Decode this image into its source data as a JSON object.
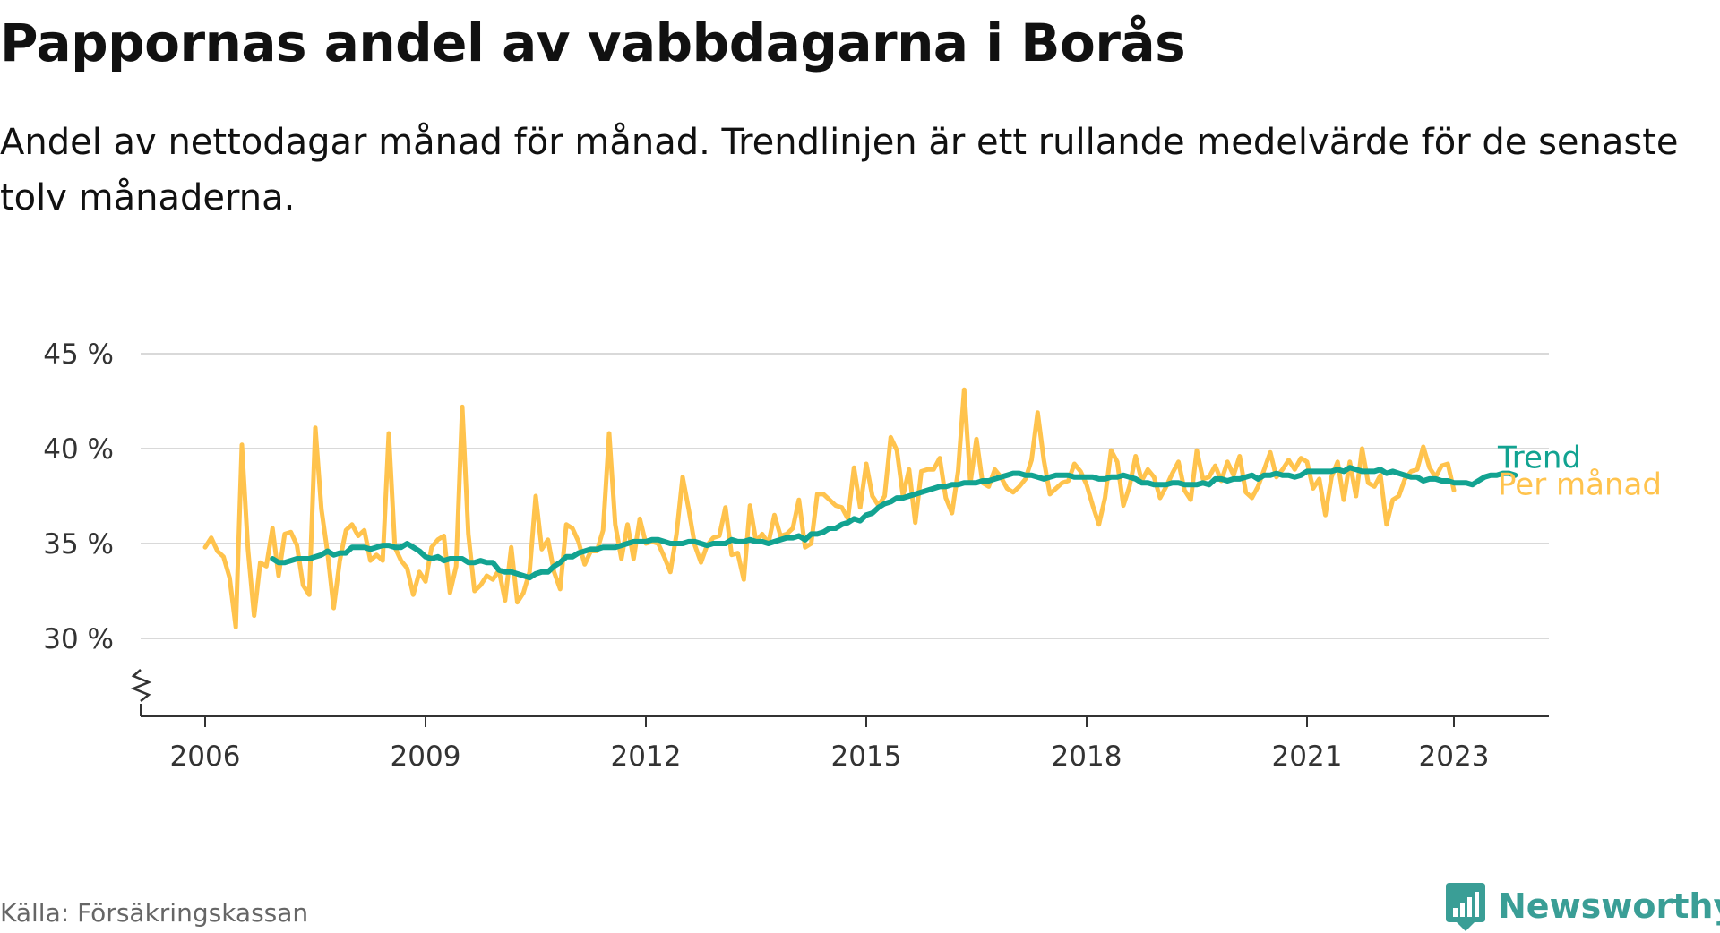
{
  "title": "Pappornas andel av vabbdagarna i Borås",
  "subtitle": "Andel av nettodagar månad för månad. Trendlinjen är ett rullande medelvärde för de senaste tolv månaderna.",
  "source": "Källa: Försäkringskassan",
  "logo": {
    "text": "Newsworthy",
    "icon": "newsworthy-logo-icon",
    "color": "#3a9e96"
  },
  "colors": {
    "trend": "#12a391",
    "monthly": "#ffc34d",
    "grid": "#d9d9d9",
    "axis": "#333333"
  },
  "chart_data": {
    "type": "line",
    "title": "Pappornas andel av vabbdagarna i Borås",
    "xlabel": "",
    "ylabel": "",
    "ylim": [
      26,
      45
    ],
    "y_ticks": [
      30,
      35,
      40,
      45
    ],
    "y_tick_labels": [
      "30 %",
      "35 %",
      "40 %",
      "45 %"
    ],
    "y_axis_break": true,
    "x_ticks": [
      2006,
      2009,
      2012,
      2015,
      2018,
      2021,
      2023
    ],
    "x_tick_labels": [
      "2006",
      "2009",
      "2012",
      "2015",
      "2018",
      "2021",
      "2023"
    ],
    "grid": true,
    "legend": "direct-labels-right",
    "series": [
      {
        "name": "Trend",
        "color": "#12a391",
        "start": "2006-12",
        "values": [
          34.2,
          34.0,
          34.0,
          34.1,
          34.2,
          34.2,
          34.2,
          34.3,
          34.4,
          34.6,
          34.4,
          34.5,
          34.5,
          34.8,
          34.8,
          34.8,
          34.7,
          34.8,
          34.9,
          34.9,
          34.8,
          34.8,
          35.0,
          34.8,
          34.6,
          34.3,
          34.2,
          34.3,
          34.1,
          34.2,
          34.2,
          34.2,
          34.0,
          34.0,
          34.1,
          34.0,
          34.0,
          33.6,
          33.5,
          33.5,
          33.4,
          33.3,
          33.2,
          33.4,
          33.5,
          33.5,
          33.8,
          34.0,
          34.3,
          34.3,
          34.5,
          34.6,
          34.7,
          34.7,
          34.8,
          34.8,
          34.8,
          34.9,
          35.0,
          35.1,
          35.1,
          35.1,
          35.2,
          35.2,
          35.1,
          35.0,
          35.0,
          35.0,
          35.1,
          35.1,
          35.0,
          34.9,
          35.0,
          35.0,
          35.0,
          35.2,
          35.1,
          35.1,
          35.2,
          35.1,
          35.1,
          35.0,
          35.1,
          35.2,
          35.3,
          35.3,
          35.4,
          35.2,
          35.5,
          35.5,
          35.6,
          35.8,
          35.8,
          36.0,
          36.1,
          36.3,
          36.2,
          36.5,
          36.6,
          36.9,
          37.1,
          37.2,
          37.4,
          37.4,
          37.5,
          37.6,
          37.7,
          37.8,
          37.9,
          38.0,
          38.0,
          38.1,
          38.1,
          38.2,
          38.2,
          38.2,
          38.3,
          38.3,
          38.4,
          38.5,
          38.6,
          38.7,
          38.7,
          38.6,
          38.6,
          38.5,
          38.4,
          38.5,
          38.6,
          38.6,
          38.6,
          38.5,
          38.5,
          38.5,
          38.5,
          38.4,
          38.4,
          38.5,
          38.5,
          38.6,
          38.5,
          38.4,
          38.2,
          38.2,
          38.1,
          38.1,
          38.1,
          38.2,
          38.2,
          38.1,
          38.1,
          38.1,
          38.2,
          38.1,
          38.4,
          38.4,
          38.3,
          38.4,
          38.4,
          38.5,
          38.6,
          38.4,
          38.6,
          38.6,
          38.7,
          38.6,
          38.6,
          38.5,
          38.6,
          38.8,
          38.8,
          38.8,
          38.8,
          38.8,
          38.9,
          38.8,
          39.0,
          38.9,
          38.8,
          38.8,
          38.8,
          38.9,
          38.7,
          38.8,
          38.7,
          38.6,
          38.5,
          38.5,
          38.3,
          38.4,
          38.4,
          38.3,
          38.3,
          38.2,
          38.2,
          38.2,
          38.1,
          38.3,
          38.5,
          38.6,
          38.6,
          38.7,
          38.7,
          38.6
        ]
      },
      {
        "name": "Per månad",
        "color": "#ffc34d",
        "start": "2006-01",
        "values": [
          34.8,
          35.3,
          34.6,
          34.3,
          33.2,
          30.6,
          40.2,
          34.7,
          31.2,
          34.0,
          33.8,
          35.8,
          33.3,
          35.5,
          35.6,
          34.9,
          32.8,
          32.3,
          41.1,
          36.8,
          34.5,
          31.6,
          34.1,
          35.7,
          36.0,
          35.4,
          35.7,
          34.1,
          34.4,
          34.1,
          40.8,
          34.8,
          34.1,
          33.7,
          32.3,
          33.5,
          33.0,
          34.8,
          35.2,
          35.4,
          32.4,
          33.8,
          42.2,
          35.5,
          32.5,
          32.8,
          33.3,
          33.1,
          33.6,
          32.0,
          34.8,
          31.9,
          32.4,
          33.5,
          37.5,
          34.7,
          35.2,
          33.5,
          32.6,
          36.0,
          35.8,
          35.1,
          33.9,
          34.6,
          34.6,
          35.7,
          40.8,
          36.0,
          34.2,
          36.0,
          34.2,
          36.3,
          35.0,
          35.1,
          35.0,
          34.3,
          33.5,
          35.5,
          38.5,
          36.8,
          34.9,
          34.0,
          34.9,
          35.3,
          35.4,
          36.9,
          34.4,
          34.5,
          33.1,
          37.0,
          35.1,
          35.5,
          35.0,
          36.5,
          35.4,
          35.5,
          35.8,
          37.3,
          34.8,
          35.0,
          37.6,
          37.6,
          37.3,
          37.0,
          36.9,
          36.3,
          39.0,
          36.9,
          39.2,
          37.5,
          37.0,
          37.5,
          40.6,
          39.9,
          37.5,
          38.9,
          36.1,
          38.8,
          38.9,
          38.9,
          39.5,
          37.4,
          36.6,
          38.8,
          43.1,
          38.2,
          40.5,
          38.2,
          38.0,
          38.9,
          38.5,
          37.9,
          37.7,
          38.0,
          38.4,
          39.4,
          41.9,
          39.4,
          37.6,
          37.9,
          38.2,
          38.3,
          39.2,
          38.8,
          38.1,
          37.0,
          36.0,
          37.4,
          39.9,
          39.3,
          37.0,
          38.0,
          39.6,
          38.3,
          38.9,
          38.5,
          37.4,
          38.0,
          38.7,
          39.3,
          37.8,
          37.3,
          39.9,
          38.4,
          38.5,
          39.1,
          38.3,
          39.3,
          38.6,
          39.6,
          37.7,
          37.4,
          38.0,
          38.9,
          39.8,
          38.5,
          38.9,
          39.4,
          38.9,
          39.5,
          39.3,
          37.9,
          38.4,
          36.5,
          38.5,
          39.3,
          37.3,
          39.3,
          37.5,
          40.0,
          38.2,
          38.0,
          38.6,
          36.0,
          37.3,
          37.5,
          38.4,
          38.8,
          38.9,
          40.1,
          39.0,
          38.5,
          39.1,
          39.2,
          37.8
        ]
      }
    ]
  }
}
